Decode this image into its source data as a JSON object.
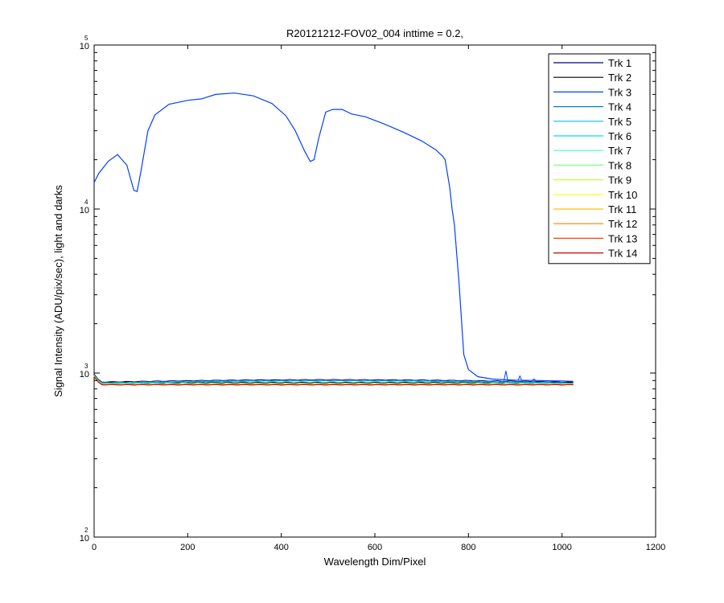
{
  "chart_data": {
    "type": "line",
    "title": "R20121212-FOV02_004 inttime = 0.2,",
    "xlabel": "Wavelength Dim/Pixel",
    "ylabel": "Signal Intensity (ADU/pix/sec), light and darks",
    "xlim": [
      0,
      1200
    ],
    "ylim": [
      100,
      100000
    ],
    "yscale": "log",
    "x_ticks": [
      "0",
      "200",
      "400",
      "600",
      "800",
      "1000",
      "1200"
    ],
    "y_ticks": [
      {
        "base": "10",
        "exp": "2"
      },
      {
        "base": "10",
        "exp": "3"
      },
      {
        "base": "10",
        "exp": "4"
      },
      {
        "base": "10",
        "exp": "5"
      }
    ],
    "grid": false,
    "legend_position": "top-right",
    "series": [
      {
        "name": "Trk 1",
        "color": "#00007f"
      },
      {
        "name": "Trk 2",
        "color": "#000000"
      },
      {
        "name": "Trk 3",
        "color": "#0040ff",
        "x": [
          0,
          10,
          30,
          50,
          70,
          85,
          92,
          100,
          115,
          130,
          160,
          200,
          230,
          260,
          300,
          340,
          380,
          410,
          430,
          450,
          462,
          470,
          480,
          495,
          510,
          530,
          550,
          580,
          620,
          660,
          700,
          730,
          745,
          750,
          760,
          765,
          770,
          780,
          790,
          800,
          820,
          850,
          880,
          900,
          950,
          1000,
          1024
        ],
        "values": [
          14500,
          16500,
          19500,
          21500,
          18500,
          13000,
          12800,
          17000,
          30000,
          37500,
          43500,
          46000,
          47000,
          50000,
          51000,
          49000,
          44000,
          37000,
          30000,
          22500,
          19500,
          20000,
          27000,
          39000,
          40500,
          40500,
          38000,
          36500,
          33000,
          29500,
          26000,
          23000,
          21000,
          20000,
          13500,
          10000,
          8000,
          3500,
          1300,
          1050,
          950,
          920,
          910,
          905,
          900,
          895,
          890
        ]
      },
      {
        "name": "Trk 4",
        "color": "#0080c0"
      },
      {
        "name": "Trk 5",
        "color": "#00bfff"
      },
      {
        "name": "Trk 6",
        "color": "#00e0e0"
      },
      {
        "name": "Trk 7",
        "color": "#40ffc0"
      },
      {
        "name": "Trk 8",
        "color": "#80ff80"
      },
      {
        "name": "Trk 9",
        "color": "#c0ff40"
      },
      {
        "name": "Trk 10",
        "color": "#ffff00"
      },
      {
        "name": "Trk 11",
        "color": "#ffc000"
      },
      {
        "name": "Trk 12",
        "color": "#ff8000"
      },
      {
        "name": "Trk 13",
        "color": "#ff4000"
      },
      {
        "name": "Trk 14",
        "color": "#cc0000"
      }
    ],
    "dark_levels": [
      880,
      875,
      870,
      865,
      862,
      860,
      858,
      856,
      855,
      853,
      852,
      850,
      848,
      846
    ],
    "dark_x_range": [
      0,
      1024
    ],
    "track3_spikes": [
      {
        "x": 880,
        "value": 1030
      },
      {
        "x": 910,
        "value": 960
      },
      {
        "x": 940,
        "value": 920
      }
    ]
  }
}
